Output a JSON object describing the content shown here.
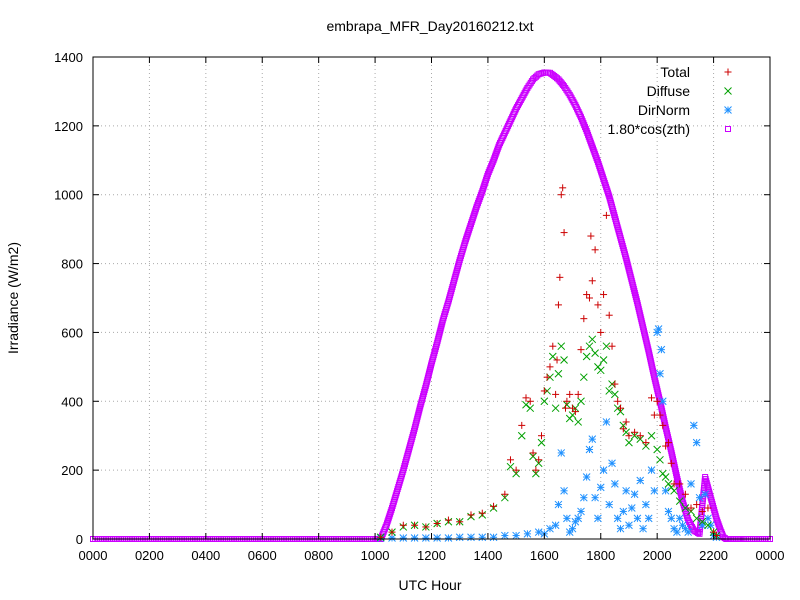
{
  "chart_data": {
    "type": "scatter",
    "title": "embrapa_MFR_Day20160212.txt",
    "xlabel": "UTC Hour",
    "ylabel": "Irradiance (W/m2)",
    "xlim": [
      0,
      24
    ],
    "ylim": [
      0,
      1400
    ],
    "grid": true,
    "legend_position": "top-right",
    "x_ticks": [
      {
        "value": 0,
        "label": "0000"
      },
      {
        "value": 2,
        "label": "0200"
      },
      {
        "value": 4,
        "label": "0400"
      },
      {
        "value": 6,
        "label": "0600"
      },
      {
        "value": 8,
        "label": "0800"
      },
      {
        "value": 10,
        "label": "1000"
      },
      {
        "value": 12,
        "label": "1200"
      },
      {
        "value": 14,
        "label": "1400"
      },
      {
        "value": 16,
        "label": "1600"
      },
      {
        "value": 18,
        "label": "1800"
      },
      {
        "value": 20,
        "label": "2000"
      },
      {
        "value": 22,
        "label": "2200"
      },
      {
        "value": 24,
        "label": "0000"
      }
    ],
    "y_ticks": [
      0,
      200,
      400,
      600,
      800,
      1000,
      1200,
      1400
    ],
    "series": [
      {
        "name": "Total",
        "marker": "plus",
        "color": "#cc0000",
        "x": [
          10.2,
          10.6,
          11.0,
          11.4,
          11.8,
          12.2,
          12.6,
          13.0,
          13.4,
          13.8,
          14.2,
          14.6,
          14.8,
          15.0,
          15.2,
          15.35,
          15.5,
          15.6,
          15.7,
          15.8,
          15.9,
          16.0,
          16.1,
          16.2,
          16.3,
          16.4,
          16.45,
          16.5,
          16.55,
          16.6,
          16.65,
          16.7,
          16.75,
          16.8,
          16.9,
          17.0,
          17.1,
          17.2,
          17.3,
          17.4,
          17.5,
          17.6,
          17.65,
          17.7,
          17.8,
          17.9,
          18.0,
          18.1,
          18.2,
          18.3,
          18.4,
          18.5,
          18.6,
          18.7,
          18.8,
          18.9,
          19.0,
          19.2,
          19.4,
          19.6,
          19.8,
          19.9,
          20.0,
          20.1,
          20.2,
          20.3,
          20.4,
          20.5,
          20.6,
          20.8,
          21.0,
          21.2,
          21.4,
          21.6,
          21.8,
          22.0,
          22.1
        ],
        "y": [
          5,
          20,
          40,
          40,
          35,
          45,
          55,
          50,
          70,
          75,
          95,
          130,
          230,
          200,
          330,
          410,
          400,
          250,
          200,
          230,
          300,
          430,
          470,
          500,
          560,
          420,
          520,
          680,
          760,
          1000,
          1020,
          890,
          380,
          400,
          420,
          380,
          370,
          420,
          550,
          640,
          710,
          700,
          880,
          750,
          840,
          680,
          600,
          710,
          940,
          650,
          560,
          450,
          400,
          380,
          320,
          340,
          300,
          310,
          300,
          280,
          410,
          360,
          400,
          360,
          330,
          270,
          280,
          220,
          160,
          160,
          130,
          90,
          100,
          80,
          90,
          20,
          10
        ]
      },
      {
        "name": "Diffuse",
        "marker": "cross",
        "color": "#00a000",
        "x": [
          10.2,
          10.6,
          11.0,
          11.4,
          11.8,
          12.2,
          12.6,
          13.0,
          13.4,
          13.8,
          14.2,
          14.6,
          14.8,
          15.0,
          15.2,
          15.35,
          15.5,
          15.6,
          15.7,
          15.8,
          15.9,
          16.0,
          16.1,
          16.2,
          16.3,
          16.4,
          16.5,
          16.6,
          16.7,
          16.8,
          16.9,
          17.0,
          17.1,
          17.2,
          17.3,
          17.4,
          17.5,
          17.6,
          17.7,
          17.8,
          17.9,
          18.0,
          18.1,
          18.2,
          18.3,
          18.4,
          18.5,
          18.6,
          18.7,
          18.8,
          18.9,
          19.0,
          19.2,
          19.4,
          19.6,
          19.8,
          20.0,
          20.1,
          20.2,
          20.3,
          20.4,
          20.5,
          20.6,
          20.8,
          21.0,
          21.2,
          21.4,
          21.6,
          21.8,
          22.0,
          22.1
        ],
        "y": [
          5,
          20,
          35,
          40,
          35,
          45,
          50,
          50,
          65,
          70,
          90,
          120,
          210,
          190,
          300,
          390,
          380,
          240,
          190,
          220,
          280,
          400,
          430,
          470,
          530,
          380,
          480,
          560,
          520,
          390,
          350,
          360,
          380,
          340,
          400,
          470,
          530,
          560,
          580,
          540,
          500,
          490,
          520,
          560,
          430,
          450,
          420,
          380,
          370,
          330,
          310,
          280,
          300,
          290,
          270,
          300,
          260,
          230,
          190,
          180,
          160,
          150,
          140,
          110,
          90,
          80,
          60,
          50,
          40,
          20,
          10
        ]
      },
      {
        "name": "DirNorm",
        "marker": "star",
        "color": "#1e90ff",
        "x": [
          10.2,
          10.6,
          11.0,
          11.4,
          11.8,
          12.2,
          12.6,
          13.0,
          13.4,
          13.8,
          14.2,
          14.6,
          15.0,
          15.4,
          15.8,
          16.0,
          16.2,
          16.4,
          16.5,
          16.6,
          16.7,
          16.8,
          16.9,
          17.0,
          17.1,
          17.2,
          17.3,
          17.4,
          17.5,
          17.6,
          17.7,
          17.8,
          17.9,
          18.0,
          18.1,
          18.2,
          18.3,
          18.4,
          18.5,
          18.6,
          18.7,
          18.8,
          18.9,
          19.0,
          19.1,
          19.2,
          19.3,
          19.4,
          19.5,
          19.6,
          19.7,
          19.8,
          19.9,
          20.0,
          20.05,
          20.1,
          20.15,
          20.2,
          20.3,
          20.4,
          20.5,
          20.6,
          20.7,
          20.8,
          20.9,
          21.0,
          21.1,
          21.2,
          21.3,
          21.4,
          21.5,
          21.6,
          21.7,
          21.8,
          21.9,
          22.0,
          22.1
        ],
        "y": [
          3,
          3,
          3,
          3,
          3,
          3,
          3,
          5,
          5,
          5,
          5,
          10,
          10,
          15,
          20,
          15,
          30,
          40,
          100,
          250,
          140,
          60,
          20,
          30,
          50,
          60,
          80,
          120,
          180,
          260,
          290,
          120,
          60,
          150,
          200,
          340,
          100,
          220,
          160,
          60,
          30,
          80,
          140,
          40,
          90,
          130,
          60,
          170,
          30,
          100,
          60,
          200,
          140,
          600,
          610,
          480,
          550,
          400,
          140,
          80,
          60,
          30,
          20,
          60,
          40,
          30,
          20,
          160,
          330,
          280,
          120,
          40,
          130,
          60,
          40,
          10,
          5
        ]
      },
      {
        "name": "1.80*cos(zth)",
        "marker": "square",
        "color": "#cc00ff",
        "x": [
          0,
          1,
          2,
          3,
          4,
          5,
          6,
          7,
          8,
          9,
          10,
          10.2,
          10.25,
          10.4,
          10.6,
          10.8,
          11.0,
          11.2,
          11.4,
          11.6,
          11.8,
          12.0,
          12.2,
          12.4,
          12.6,
          12.8,
          13.0,
          13.2,
          13.4,
          13.6,
          13.8,
          14.0,
          14.2,
          14.4,
          14.6,
          14.8,
          15.0,
          15.2,
          15.4,
          15.6,
          15.8,
          16.0,
          16.2,
          16.35,
          16.5,
          16.7,
          16.9,
          17.1,
          17.3,
          17.5,
          17.7,
          17.9,
          18.1,
          18.3,
          18.5,
          18.7,
          18.9,
          19.1,
          19.3,
          19.5,
          19.7,
          19.9,
          20.1,
          20.3,
          20.5,
          20.7,
          20.9,
          21.1,
          21.3,
          21.5,
          21.7,
          21.9,
          22.1,
          22.25,
          22.35,
          22.45,
          22.6,
          23,
          24
        ],
        "y": [
          0,
          0,
          0,
          0,
          0,
          0,
          0,
          0,
          0,
          0,
          0,
          0,
          10,
          40,
          90,
          145,
          200,
          260,
          320,
          385,
          445,
          510,
          570,
          635,
          690,
          750,
          810,
          865,
          915,
          965,
          1010,
          1060,
          1100,
          1145,
          1180,
          1215,
          1250,
          1280,
          1310,
          1335,
          1350,
          1355,
          1354,
          1345,
          1335,
          1315,
          1290,
          1260,
          1225,
          1185,
          1140,
          1095,
          1045,
          995,
          935,
          875,
          815,
          750,
          685,
          615,
          545,
          470,
          400,
          325,
          255,
          180,
          110,
          55,
          25,
          15,
          180,
          120,
          60,
          25,
          5,
          0,
          0,
          0,
          0
        ]
      }
    ]
  }
}
